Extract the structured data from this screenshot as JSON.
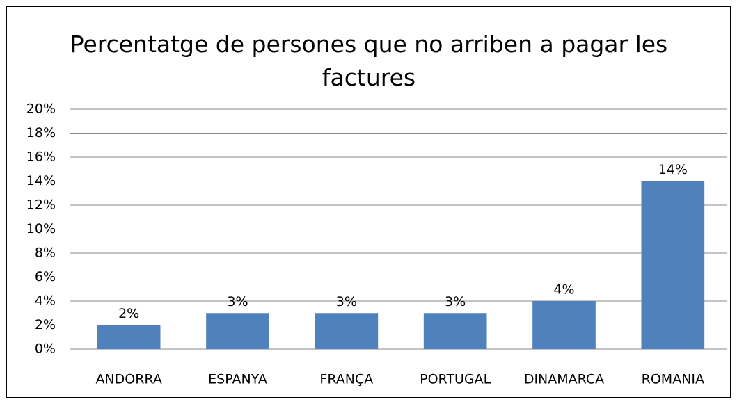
{
  "chart_data": {
    "type": "bar",
    "title": "Percentatge de persones que no arriben a pagar les factures",
    "categories": [
      "ANDORRA",
      "ESPANYA",
      "FRANÇA",
      "PORTUGAL",
      "DINAMARCA",
      "ROMANIA"
    ],
    "values": [
      2,
      3,
      3,
      3,
      4,
      14
    ],
    "value_labels": [
      "2%",
      "3%",
      "3%",
      "3%",
      "4%",
      "14%"
    ],
    "color": "#4f81bd",
    "ylim": [
      0,
      20
    ],
    "yticks": [
      {
        "value": 0,
        "label": "0%"
      },
      {
        "value": 2,
        "label": "2%"
      },
      {
        "value": 4,
        "label": "4%"
      },
      {
        "value": 6,
        "label": "6%"
      },
      {
        "value": 8,
        "label": "8%"
      },
      {
        "value": 10,
        "label": "10%"
      },
      {
        "value": 12,
        "label": "12%"
      },
      {
        "value": 14,
        "label": "14%"
      },
      {
        "value": 16,
        "label": "16%"
      },
      {
        "value": 18,
        "label": "18%"
      },
      {
        "value": 20,
        "label": "20%"
      }
    ],
    "grid": true
  }
}
